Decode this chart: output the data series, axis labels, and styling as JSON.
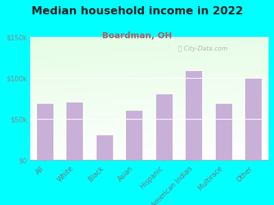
{
  "title": "Median household income in 2022",
  "subtitle": "Boardman, OH",
  "categories": [
    "All",
    "White",
    "Black",
    "Asian",
    "Hispanic",
    "American Indian",
    "Multirace",
    "Other"
  ],
  "values": [
    68000,
    70000,
    30000,
    60000,
    80000,
    108000,
    68000,
    100000
  ],
  "bar_color": "#c8b0d8",
  "background_outer": "#00ffff",
  "title_color": "#222222",
  "subtitle_color": "#b06060",
  "tick_label_color": "#888888",
  "axis_label_color": "#777777",
  "ylim": [
    0,
    150000
  ],
  "yticks": [
    0,
    50000,
    100000,
    150000
  ],
  "ytick_labels": [
    "$0",
    "$50k",
    "$100k",
    "$150k"
  ],
  "watermark": "City-Data.com",
  "title_fontsize": 11.5,
  "subtitle_fontsize": 9,
  "tick_fontsize": 7
}
